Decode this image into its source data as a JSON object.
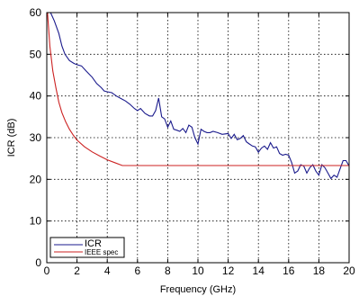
{
  "chart_data": {
    "type": "line",
    "title": "",
    "xlabel": "Frequency (GHz)",
    "ylabel": "ICR (dB)",
    "xlim": [
      0,
      20
    ],
    "ylim": [
      0,
      60
    ],
    "xticks": [
      0,
      2,
      4,
      6,
      8,
      10,
      12,
      14,
      16,
      18,
      20
    ],
    "yticks": [
      0,
      10,
      20,
      30,
      40,
      50,
      60
    ],
    "grid": true,
    "grid_style": "dotted",
    "legend_position": "bottom-left",
    "series": [
      {
        "name": "ICR",
        "color": "#1a1a8c",
        "x": [
          0.25,
          0.5,
          0.8,
          1.0,
          1.2,
          1.5,
          1.8,
          2.0,
          2.3,
          2.6,
          3.0,
          3.3,
          3.6,
          3.8,
          4.0,
          4.3,
          4.6,
          5.0,
          5.2,
          5.5,
          5.8,
          6.0,
          6.2,
          6.5,
          6.8,
          7.0,
          7.2,
          7.4,
          7.6,
          7.8,
          8.0,
          8.2,
          8.4,
          8.6,
          8.8,
          9.0,
          9.2,
          9.4,
          9.6,
          9.8,
          10.0,
          10.2,
          10.4,
          10.6,
          10.8,
          11.0,
          11.3,
          11.6,
          12.0,
          12.2,
          12.4,
          12.6,
          12.8,
          13.0,
          13.2,
          13.4,
          13.6,
          13.8,
          14.0,
          14.2,
          14.4,
          14.6,
          14.8,
          15.0,
          15.2,
          15.4,
          15.6,
          15.8,
          16.0,
          16.2,
          16.4,
          16.6,
          16.8,
          17.0,
          17.2,
          17.4,
          17.6,
          17.8,
          18.0,
          18.2,
          18.4,
          18.6,
          18.8,
          19.0,
          19.2,
          19.4,
          19.6,
          19.8,
          20.0
        ],
        "y": [
          60,
          58,
          55,
          52,
          50,
          48.5,
          47.8,
          47.5,
          47.2,
          46,
          44.5,
          43,
          42,
          41.2,
          41,
          40.8,
          40,
          39.2,
          38.8,
          38,
          37,
          36.5,
          37,
          35.8,
          35.2,
          35.2,
          36.5,
          39.5,
          35,
          34.5,
          32.5,
          34,
          32,
          31.8,
          31.5,
          32.2,
          31.2,
          33,
          32.5,
          30,
          28.5,
          32,
          31.5,
          31.2,
          31.2,
          31.5,
          31.2,
          30.8,
          31,
          29.8,
          30.8,
          29.5,
          29.8,
          30.5,
          29,
          28.5,
          28,
          27.8,
          26.5,
          27.5,
          28,
          27.2,
          28.8,
          27.5,
          27.8,
          26.2,
          25.8,
          26,
          25.8,
          24,
          21.5,
          22,
          23.5,
          23.2,
          21.5,
          22.8,
          23.5,
          22,
          21,
          23.5,
          22.8,
          21.5,
          20.2,
          21,
          20.5,
          22.5,
          24.5,
          24.5,
          23.2
        ]
      },
      {
        "name": "IEEE spec",
        "color": "#cc2222",
        "x": [
          0.05,
          0.2,
          0.4,
          0.6,
          0.8,
          1.0,
          1.25,
          1.5,
          1.75,
          2.0,
          2.5,
          3.0,
          3.5,
          4.0,
          4.5,
          5.0,
          5.5,
          6,
          8,
          10,
          12,
          14,
          16,
          18,
          20
        ],
        "y": [
          60,
          52,
          46,
          42,
          38.5,
          36,
          33.8,
          32,
          30.6,
          29.4,
          27.8,
          26.6,
          25.6,
          24.7,
          24,
          23.3,
          23.3,
          23.3,
          23.3,
          23.3,
          23.3,
          23.3,
          23.3,
          23.3,
          23.3
        ]
      }
    ]
  }
}
